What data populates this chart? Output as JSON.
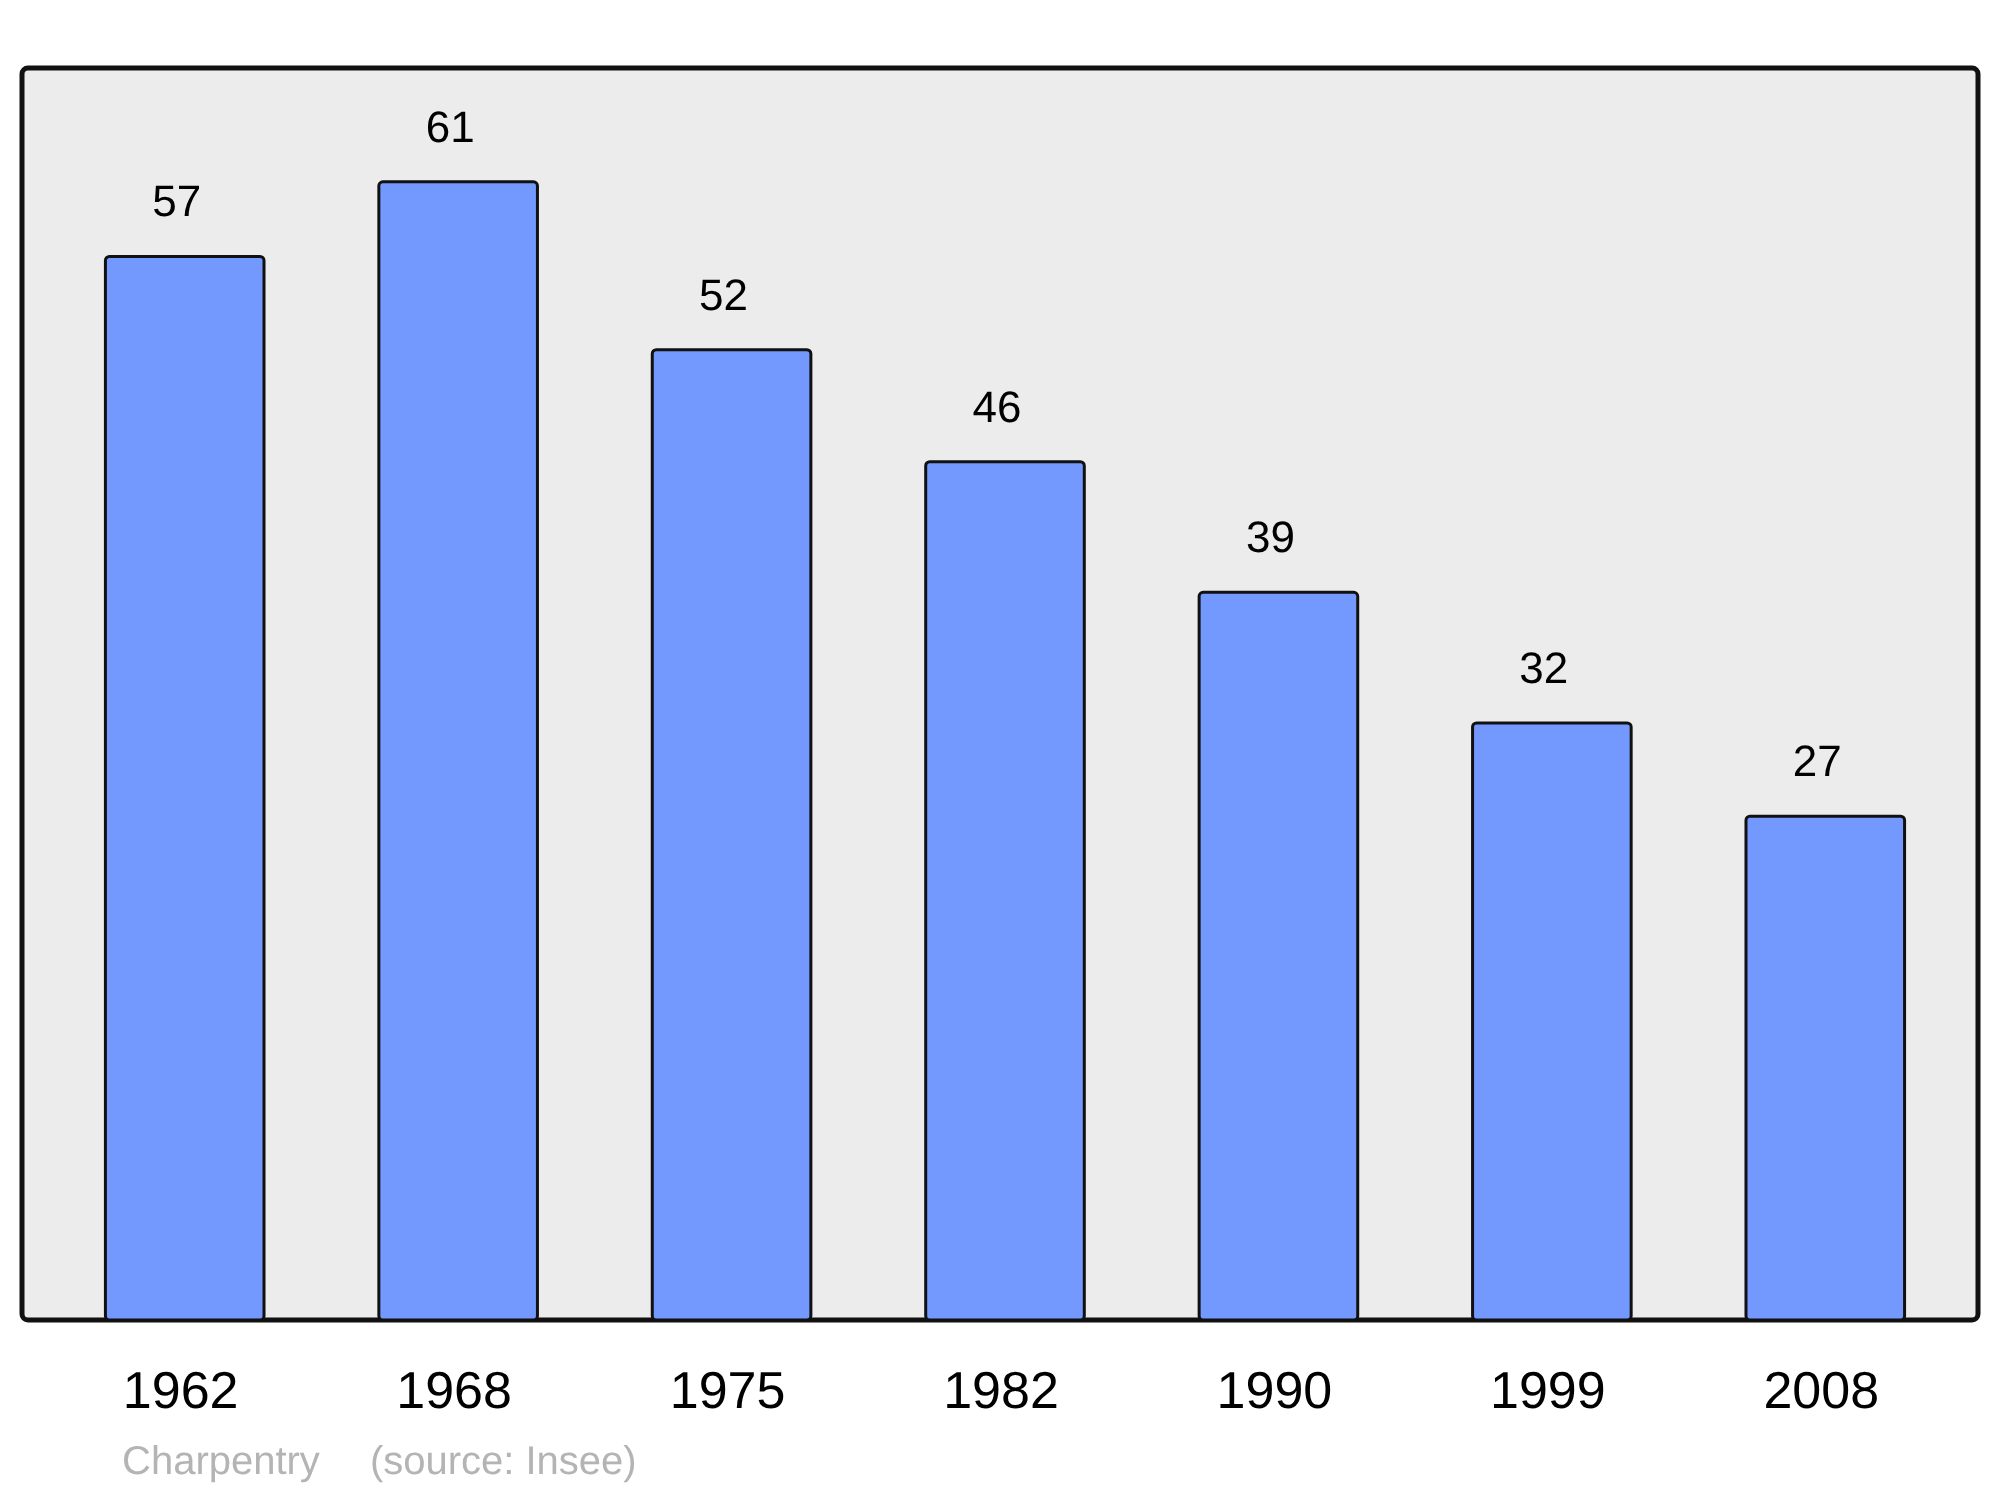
{
  "chart_data": {
    "type": "bar",
    "categories": [
      "1962",
      "1968",
      "1975",
      "1982",
      "1990",
      "1999",
      "2008"
    ],
    "values": [
      57,
      61,
      52,
      46,
      39,
      32,
      27
    ],
    "color": "#7399ff",
    "data_labels": true,
    "annotations": [
      "Charpentry",
      "(source: Insee)"
    ]
  }
}
